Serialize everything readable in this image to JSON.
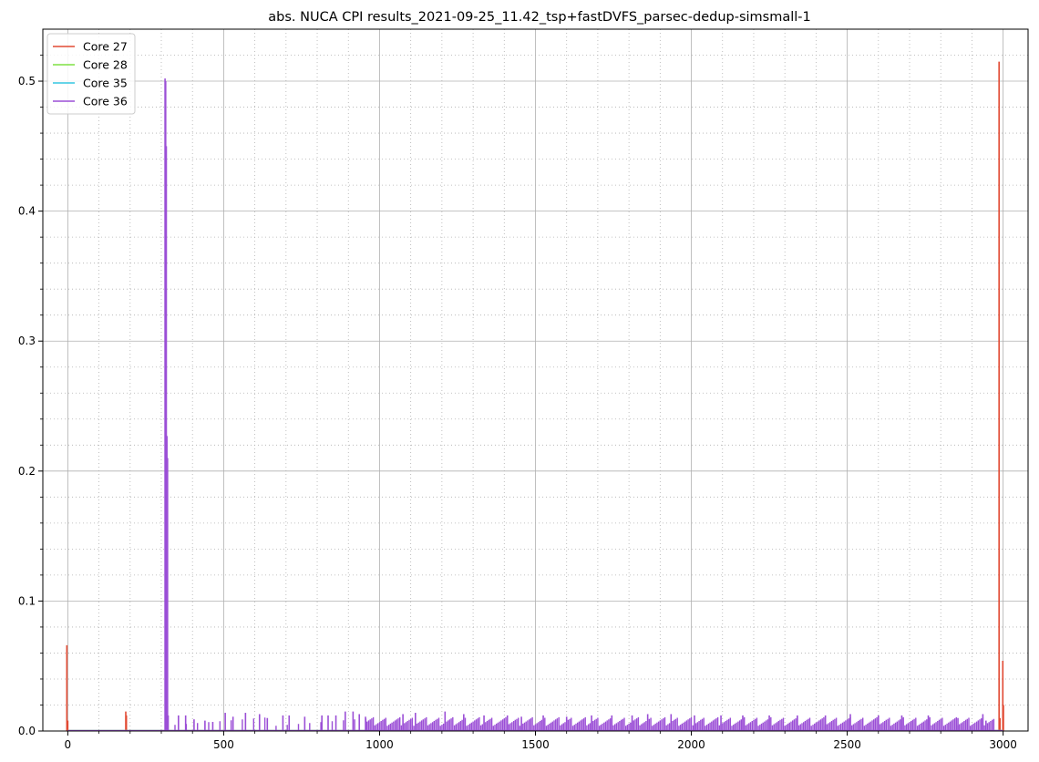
{
  "chart_data": {
    "type": "line",
    "title": "abs. NUCA CPI results_2021-09-25_11.42_tsp+fastDVFS_parsec-dedup-simsmall-1",
    "xlabel": "",
    "ylabel": "",
    "xlim": [
      -80,
      3080
    ],
    "ylim": [
      0,
      0.54
    ],
    "xticks": [
      "0",
      "500",
      "1000",
      "1500",
      "2000",
      "2500",
      "3000"
    ],
    "yticks": [
      "0.0",
      "0.1",
      "0.2",
      "0.3",
      "0.4",
      "0.5"
    ],
    "xtick_values": [
      0,
      500,
      1000,
      1500,
      2000,
      2500,
      3000
    ],
    "ytick_values": [
      0,
      0.1,
      0.2,
      0.3,
      0.4,
      0.5
    ],
    "grid": "major solid, minor dotted",
    "legend_position": "top-left",
    "series": [
      {
        "name": "Core 27",
        "color": "#e24a33",
        "spikes": [
          [
            -3,
            0.066
          ],
          [
            0,
            0.008
          ],
          [
            186,
            0.015
          ],
          [
            188,
            0.012
          ],
          [
            2987,
            0.515
          ],
          [
            2990,
            0.01
          ],
          [
            2999,
            0.054
          ],
          [
            3001,
            0.02
          ]
        ]
      },
      {
        "name": "Core 28",
        "color": "#7ee043",
        "spikes": []
      },
      {
        "name": "Core 35",
        "color": "#33c6e0",
        "spikes": []
      },
      {
        "name": "Core 36",
        "color": "#9b4fd6",
        "spikes": [
          [
            312,
            0.502
          ],
          [
            314,
            0.5
          ],
          [
            316,
            0.45
          ],
          [
            318,
            0.227
          ],
          [
            320,
            0.21
          ],
          [
            322,
            0.012
          ],
          [
            355,
            0.012
          ],
          [
            378,
            0.012
          ],
          [
            405,
            0.009
          ],
          [
            440,
            0.008
          ],
          [
            465,
            0.007
          ],
          [
            505,
            0.014
          ],
          [
            530,
            0.011
          ],
          [
            570,
            0.014
          ],
          [
            615,
            0.013
          ],
          [
            640,
            0.01
          ],
          [
            690,
            0.012
          ],
          [
            710,
            0.012
          ],
          [
            760,
            0.011
          ],
          [
            815,
            0.012
          ],
          [
            835,
            0.012
          ],
          [
            860,
            0.012
          ],
          [
            890,
            0.015
          ],
          [
            915,
            0.015
          ],
          [
            935,
            0.013
          ],
          [
            955,
            0.011
          ],
          [
            1075,
            0.013
          ],
          [
            1115,
            0.014
          ],
          [
            1210,
            0.015
          ],
          [
            1270,
            0.013
          ],
          [
            1335,
            0.012
          ],
          [
            1410,
            0.012
          ],
          [
            1455,
            0.011
          ],
          [
            1525,
            0.012
          ],
          [
            1600,
            0.011
          ],
          [
            1680,
            0.012
          ],
          [
            1745,
            0.012
          ],
          [
            1810,
            0.012
          ],
          [
            1860,
            0.013
          ],
          [
            1935,
            0.013
          ],
          [
            2010,
            0.012
          ],
          [
            2095,
            0.012
          ],
          [
            2165,
            0.012
          ],
          [
            2250,
            0.012
          ],
          [
            2340,
            0.012
          ],
          [
            2430,
            0.012
          ],
          [
            2510,
            0.013
          ],
          [
            2600,
            0.012
          ],
          [
            2675,
            0.012
          ],
          [
            2760,
            0.012
          ],
          [
            2855,
            0.01
          ],
          [
            2935,
            0.013
          ],
          [
            2945,
            0.008
          ]
        ],
        "band": {
          "from": 960,
          "to": 2970,
          "low": 0.004,
          "high": 0.011,
          "step": 5,
          "sparse_from": 320,
          "sparse_to": 960
        }
      }
    ]
  }
}
